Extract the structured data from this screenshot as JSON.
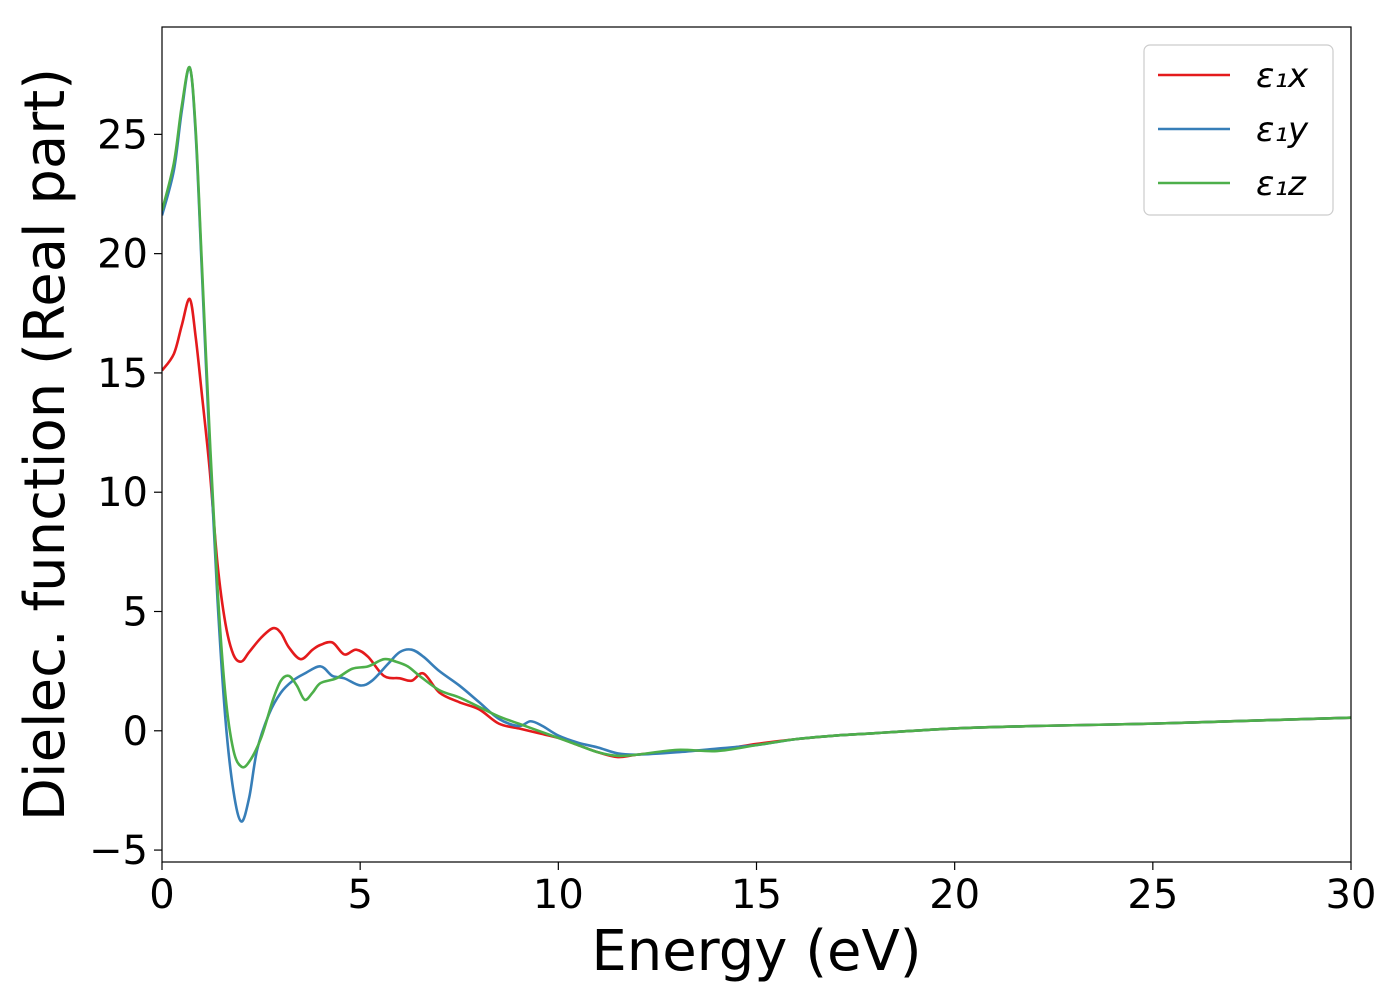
{
  "chart_data": {
    "type": "line",
    "title": "",
    "xlabel": "Energy (eV)",
    "ylabel": "Dielec. function (Real part)",
    "xlim": [
      0,
      30
    ],
    "ylim": [
      -5.5,
      29.5
    ],
    "xticks": [
      0,
      5,
      10,
      15,
      20,
      25,
      30
    ],
    "yticks": [
      -5,
      0,
      5,
      10,
      15,
      20,
      25
    ],
    "xtick_labels": [
      "0",
      "5",
      "10",
      "15",
      "20",
      "25",
      "30"
    ],
    "ytick_labels": [
      "−5",
      "0",
      "5",
      "10",
      "15",
      "20",
      "25"
    ],
    "grid": false,
    "legend_position": "top-right",
    "series": [
      {
        "name": "ε₁x",
        "color": "#e41a1c",
        "x": [
          0,
          0.3,
          0.5,
          0.7,
          0.85,
          1.0,
          1.2,
          1.4,
          1.6,
          1.8,
          2.0,
          2.2,
          2.5,
          2.8,
          3.0,
          3.2,
          3.5,
          3.8,
          4.0,
          4.3,
          4.6,
          4.9,
          5.2,
          5.6,
          6.0,
          6.3,
          6.6,
          7.0,
          7.5,
          8.0,
          8.5,
          9.0,
          9.5,
          10.0,
          10.5,
          11.0,
          11.5,
          12.0,
          13.0,
          14.0,
          15.0,
          16.0,
          17.0,
          18.0,
          20.0,
          22.0,
          25.0,
          28.0,
          30.0
        ],
        "values": [
          15.1,
          15.8,
          17.0,
          18.1,
          16.5,
          14.2,
          11.0,
          7.0,
          4.5,
          3.2,
          2.9,
          3.3,
          3.9,
          4.3,
          4.1,
          3.5,
          3.0,
          3.4,
          3.6,
          3.7,
          3.2,
          3.4,
          3.1,
          2.3,
          2.2,
          2.1,
          2.4,
          1.6,
          1.2,
          0.9,
          0.3,
          0.1,
          -0.1,
          -0.3,
          -0.6,
          -0.9,
          -1.1,
          -1.0,
          -0.85,
          -0.8,
          -0.55,
          -0.35,
          -0.2,
          -0.1,
          0.1,
          0.2,
          0.3,
          0.45,
          0.55
        ]
      },
      {
        "name": "ε₁y",
        "color": "#377eb8",
        "x": [
          0,
          0.3,
          0.5,
          0.7,
          0.85,
          1.0,
          1.2,
          1.4,
          1.6,
          1.8,
          2.0,
          2.2,
          2.4,
          2.7,
          3.0,
          3.3,
          3.6,
          4.0,
          4.3,
          4.6,
          5.0,
          5.3,
          5.7,
          6.0,
          6.3,
          6.6,
          7.0,
          7.5,
          8.0,
          8.5,
          9.0,
          9.3,
          9.6,
          10.0,
          10.5,
          11.0,
          11.5,
          12.0,
          13.0,
          14.0,
          15.0,
          16.0,
          17.0,
          18.0,
          20.0,
          22.0,
          25.0,
          28.0,
          30.0
        ],
        "values": [
          21.6,
          23.5,
          26.0,
          27.8,
          25.0,
          19.5,
          12.0,
          5.5,
          0.5,
          -2.5,
          -3.8,
          -2.8,
          -0.8,
          0.7,
          1.6,
          2.1,
          2.4,
          2.7,
          2.3,
          2.2,
          1.9,
          2.1,
          2.8,
          3.3,
          3.4,
          3.1,
          2.5,
          1.9,
          1.2,
          0.5,
          0.2,
          0.4,
          0.2,
          -0.2,
          -0.5,
          -0.7,
          -0.95,
          -1.0,
          -0.9,
          -0.75,
          -0.6,
          -0.35,
          -0.2,
          -0.1,
          0.1,
          0.2,
          0.3,
          0.45,
          0.55
        ]
      },
      {
        "name": "ε₁z",
        "color": "#4daf4a",
        "x": [
          0,
          0.3,
          0.5,
          0.7,
          0.85,
          1.0,
          1.2,
          1.4,
          1.6,
          1.8,
          2.0,
          2.2,
          2.5,
          2.8,
          3.0,
          3.2,
          3.4,
          3.6,
          3.8,
          4.0,
          4.4,
          4.8,
          5.2,
          5.6,
          5.9,
          6.2,
          6.5,
          7.0,
          7.5,
          8.0,
          8.5,
          9.0,
          9.5,
          10.0,
          10.5,
          11.0,
          11.5,
          12.0,
          13.0,
          14.0,
          15.0,
          16.0,
          17.0,
          18.0,
          20.0,
          22.0,
          25.0,
          28.0,
          30.0
        ],
        "values": [
          21.8,
          23.8,
          26.2,
          27.8,
          25.2,
          19.8,
          12.5,
          6.0,
          1.5,
          -0.8,
          -1.5,
          -1.3,
          -0.3,
          1.3,
          2.1,
          2.3,
          1.9,
          1.3,
          1.6,
          2.0,
          2.2,
          2.6,
          2.7,
          3.0,
          2.9,
          2.7,
          2.3,
          1.7,
          1.4,
          1.0,
          0.6,
          0.3,
          0.0,
          -0.3,
          -0.6,
          -0.9,
          -1.05,
          -1.0,
          -0.8,
          -0.85,
          -0.6,
          -0.35,
          -0.2,
          -0.1,
          0.1,
          0.2,
          0.3,
          0.45,
          0.55
        ]
      }
    ]
  }
}
